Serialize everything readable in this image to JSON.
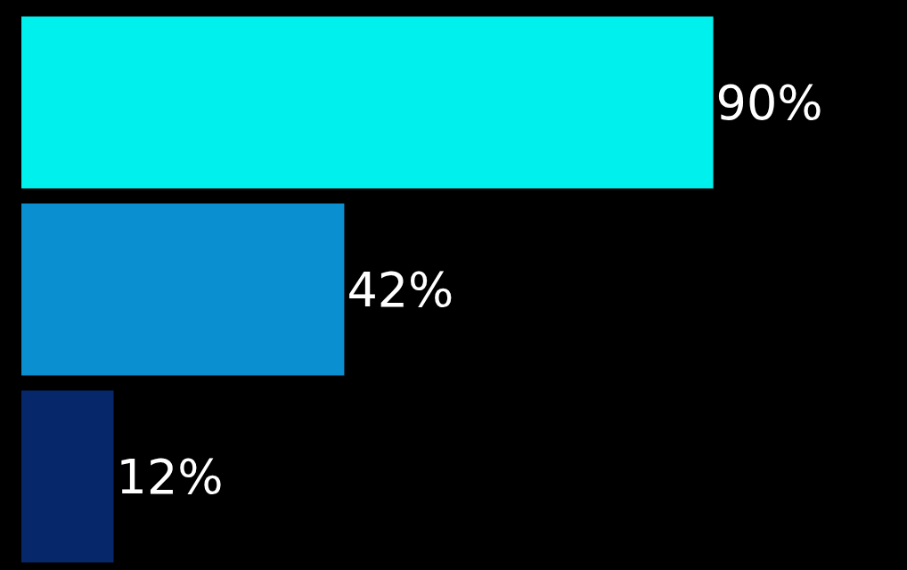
{
  "chart_data": {
    "type": "bar",
    "orientation": "horizontal",
    "categories": [
      null,
      null,
      null
    ],
    "values": [
      90,
      42,
      12
    ],
    "colors": [
      "#00f0ee",
      "#0a8fd0",
      "#06286a"
    ],
    "data_labels": true,
    "value_labels": [
      "90%",
      "42%",
      "12%"
    ],
    "tick_labels": false,
    "legend": false
  }
}
